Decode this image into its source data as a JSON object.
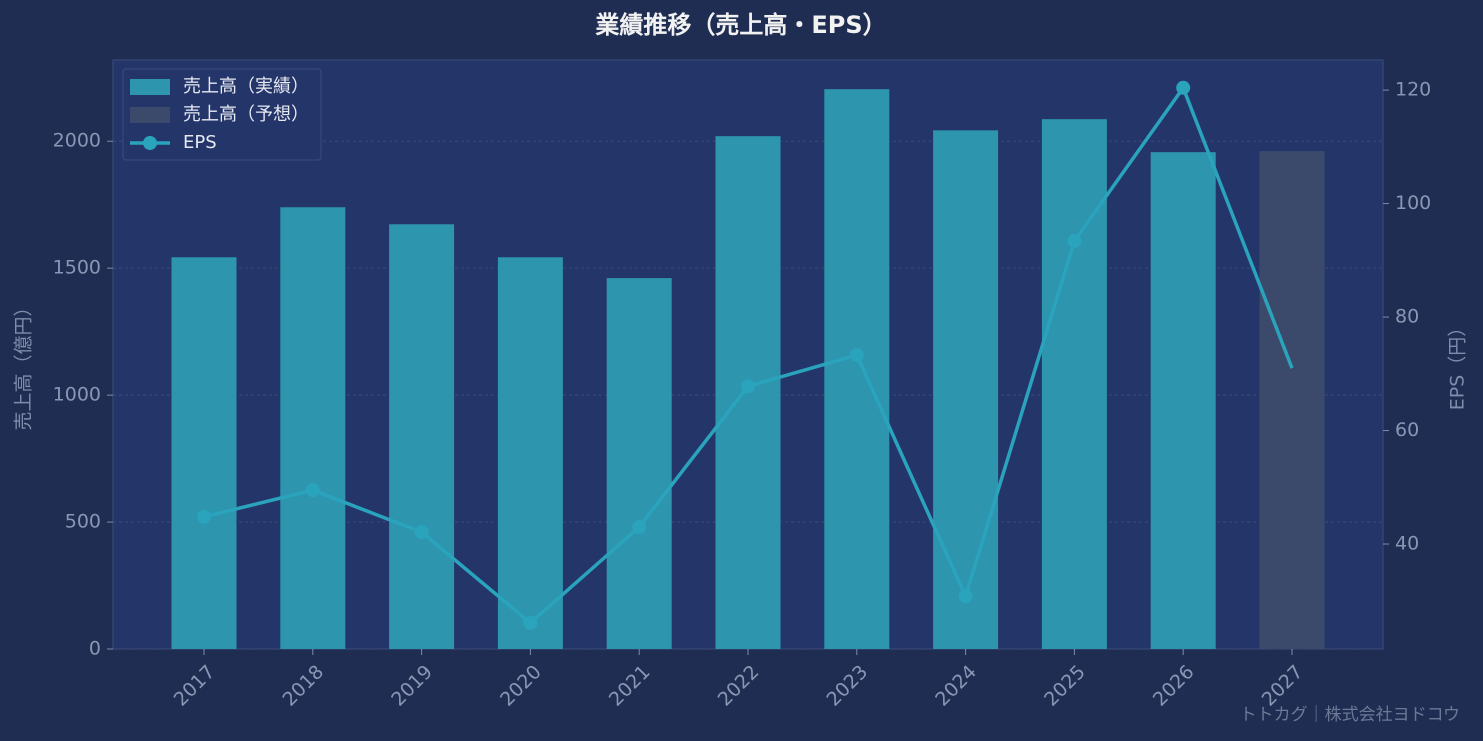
{
  "chart_data": {
    "type": "bar",
    "title": "業績推移（売上高・EPS）",
    "y_label": "売上高（億円）",
    "y2_label": "EPS（円）",
    "credit": "トトカグ｜株式会社ヨドコウ",
    "categories": [
      "2017",
      "2018",
      "2019",
      "2020",
      "2021",
      "2022",
      "2023",
      "2024",
      "2025",
      "2026",
      "2027"
    ],
    "series": [
      {
        "name": "売上高（実績）",
        "color": "#2e95ae",
        "type": "bar",
        "values": [
          1543,
          1740,
          1673,
          1543,
          1461,
          2020,
          2205,
          2043,
          2087,
          1957,
          null
        ]
      },
      {
        "name": "売上高（予想）",
        "color": "#3b4a6b",
        "type": "bar",
        "values": [
          null,
          null,
          null,
          null,
          null,
          null,
          null,
          null,
          null,
          null,
          1961
        ]
      },
      {
        "name": "EPS",
        "color": "#2aa3bd",
        "type": "line",
        "axis": "y2",
        "values": [
          44.8,
          49.5,
          42.1,
          26.1,
          43.0,
          67.8,
          73.3,
          30.8,
          93.4,
          120.4,
          71.0
        ]
      }
    ],
    "ylim": [
      0,
      2320
    ],
    "yticks": [
      0,
      500,
      1000,
      1500,
      2000
    ],
    "y2lim": [
      21.5,
      125.3
    ],
    "y2ticks": [
      40,
      60,
      80,
      100,
      120
    ],
    "grid": true,
    "legend": "upper left"
  }
}
